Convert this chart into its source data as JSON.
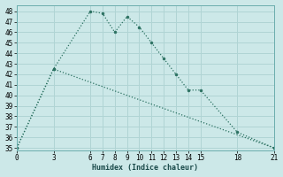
{
  "xlabel": "Humidex (Indice chaleur)",
  "ylabel": "",
  "background_color": "#cce8e8",
  "grid_color": "#b0d4d4",
  "line_color": "#2a7060",
  "xlim": [
    0,
    21
  ],
  "ylim": [
    34.8,
    48.6
  ],
  "yticks": [
    35,
    36,
    37,
    38,
    39,
    40,
    41,
    42,
    43,
    44,
    45,
    46,
    47,
    48
  ],
  "xticks": [
    0,
    3,
    6,
    7,
    8,
    9,
    10,
    11,
    12,
    13,
    14,
    15,
    18,
    21
  ],
  "curve1_x": [
    0,
    3,
    6,
    7,
    8,
    9,
    10,
    11,
    12,
    13,
    14,
    15,
    18,
    21
  ],
  "curve1_y": [
    35,
    42.5,
    48,
    47.8,
    46,
    47.5,
    46.5,
    45,
    43.5,
    42,
    40.5,
    40.5,
    36.5,
    35
  ],
  "curve2_x": [
    0,
    3,
    21
  ],
  "curve2_y": [
    35,
    42.5,
    35
  ]
}
